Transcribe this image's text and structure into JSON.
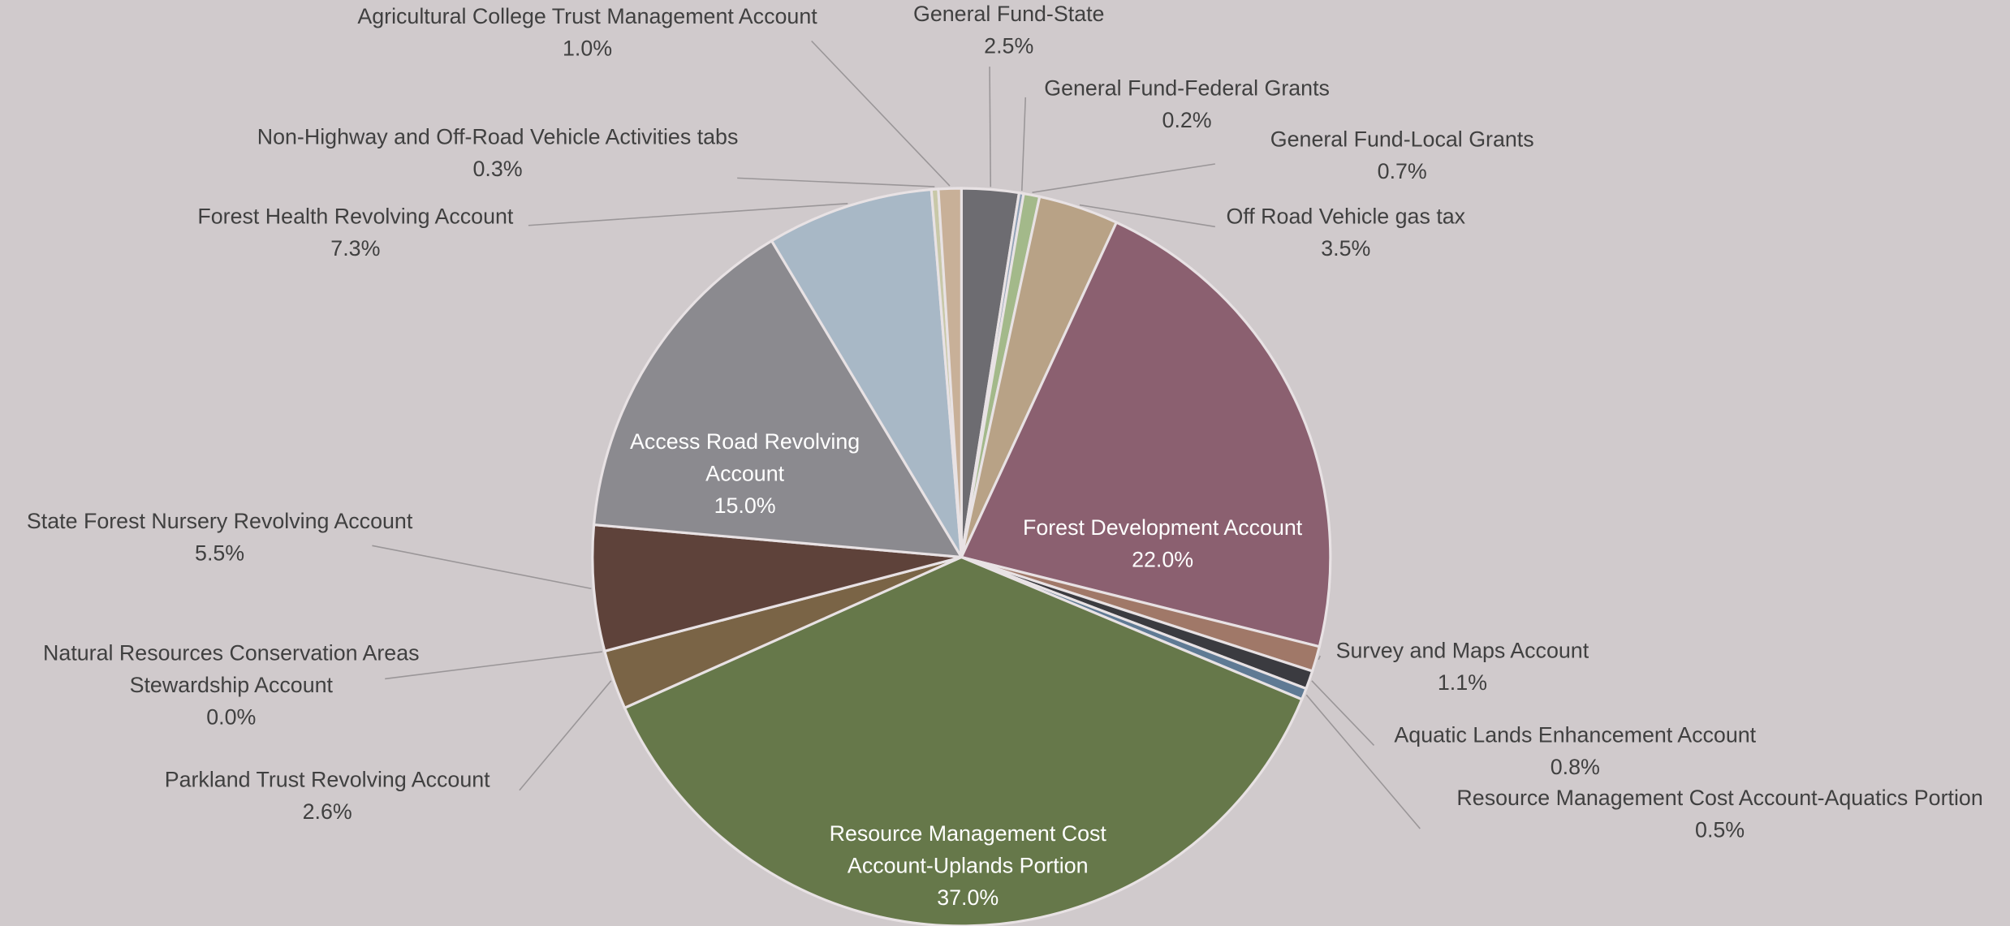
{
  "chart_data": {
    "type": "pie",
    "categories": [
      "General Fund-State",
      "General Fund-Federal Grants",
      "General Fund-Local Grants",
      "Off Road Vehicle gas tax",
      "Forest Development Account",
      "Survey and Maps Account",
      "Aquatic Lands Enhancement Account",
      "Resource Management Cost Account-Aquatics Portion",
      "Resource Management Cost Account-Uplands Portion",
      "Parkland Trust Revolving Account",
      "Natural Resources Conservation Areas Stewardship Account",
      "State Forest Nursery Revolving Account",
      "Access Road Revolving Account",
      "Forest Health Revolving Account",
      "Non-Highway and Off-Road Vehicle Activities tabs",
      "Agricultural College Trust Management Account"
    ],
    "values": [
      2.5,
      0.2,
      0.7,
      3.5,
      22.0,
      1.1,
      0.8,
      0.5,
      37.0,
      2.6,
      0.0,
      5.5,
      15.0,
      7.3,
      0.3,
      1.0
    ],
    "value_labels": [
      "2.5%",
      "0.2%",
      "0.7%",
      "3.5%",
      "22.0%",
      "1.1%",
      "0.8%",
      "0.5%",
      "37.0%",
      "2.6%",
      "0.0%",
      "5.5%",
      "15.0%",
      "7.3%",
      "0.3%",
      "1.0%"
    ],
    "colors": [
      "#6d6c71",
      "#8ea0b5",
      "#a3b98a",
      "#b8a286",
      "#8b6070",
      "#a07868",
      "#3b3b40",
      "#5f7a94",
      "#66784a",
      "#7a6446",
      "#6b5a4a",
      "#5e423a",
      "#8b8a8f",
      "#a8b8c6",
      "#c8c8a8",
      "#c8b098"
    ]
  }
}
